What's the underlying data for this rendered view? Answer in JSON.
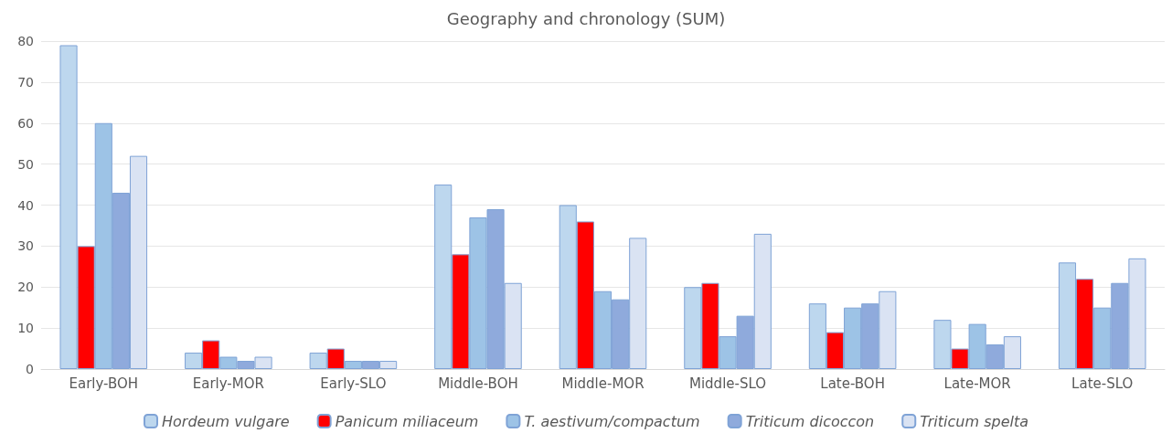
{
  "chart_data": {
    "type": "bar",
    "title": "Geography and chronology (SUM)",
    "categories": [
      "Early-BOH",
      "Early-MOR",
      "Early-SLO",
      "Middle-BOH",
      "Middle-MOR",
      "Middle-SLO",
      "Late-BOH",
      "Late-MOR",
      "Late-SLO"
    ],
    "series": [
      {
        "name": "Hordeum vulgare",
        "color": "#bdd7ee",
        "values": [
          79,
          4,
          4,
          45,
          40,
          20,
          16,
          12,
          26
        ]
      },
      {
        "name": "Panicum miliaceum",
        "color": "#ff0000",
        "values": [
          30,
          7,
          5,
          28,
          36,
          21,
          9,
          5,
          22
        ]
      },
      {
        "name": "T. aestivum/compactum",
        "color": "#9dc3e6",
        "values": [
          60,
          3,
          2,
          37,
          19,
          8,
          15,
          11,
          15
        ]
      },
      {
        "name": "Triticum dicoccon",
        "color": "#8faadc",
        "values": [
          43,
          2,
          2,
          39,
          17,
          13,
          16,
          6,
          21
        ]
      },
      {
        "name": "Triticum spelta",
        "color": "#dae3f3",
        "values": [
          52,
          3,
          2,
          21,
          32,
          33,
          19,
          8,
          27
        ]
      }
    ],
    "ylim": [
      0,
      80
    ],
    "yticks": [
      0,
      10,
      20,
      30,
      40,
      50,
      60,
      70,
      80
    ],
    "grid": "y",
    "legend": "bottom"
  }
}
